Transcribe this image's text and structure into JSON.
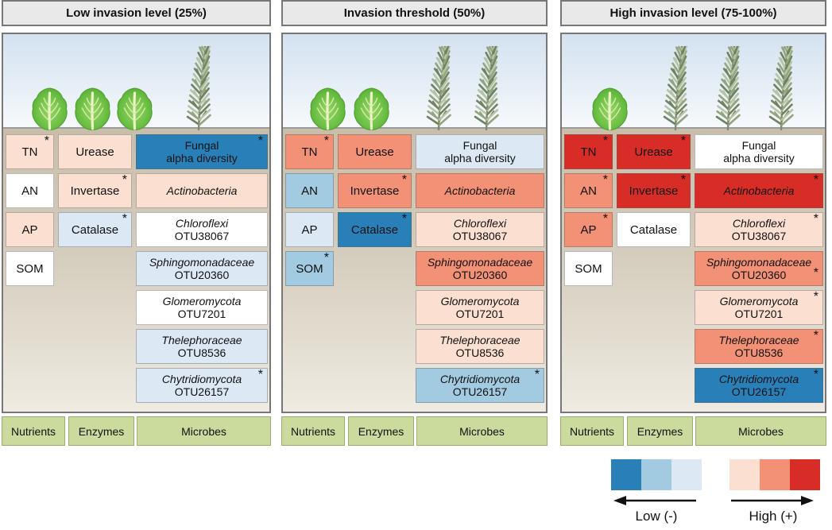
{
  "level_colors": {
    "neg3": "#2980B9",
    "neg2": "#A2CBE2",
    "neg1": "#DCE9F4",
    "pos1": "#FBDFD1",
    "pos2": "#F29175",
    "pos3": "#D82D26",
    "none": "#FFFFFF"
  },
  "category_labels": [
    "Nutrients",
    "Enzymes",
    "Microbes"
  ],
  "panels": [
    {
      "title": "Low invasion level (25%)",
      "scene": {
        "native_count": 3,
        "invasive_count": 1,
        "native_x": [
          35,
          89,
          142
        ],
        "invasive_x": [
          222
        ]
      },
      "nutrients": [
        {
          "label": "TN",
          "level": "pos1",
          "sig": true
        },
        {
          "label": "AN",
          "level": "none",
          "sig": false
        },
        {
          "label": "AP",
          "level": "pos1",
          "sig": false
        },
        {
          "label": "SOM",
          "level": "none",
          "sig": false
        }
      ],
      "enzymes": [
        {
          "label": "Urease",
          "level": "pos1",
          "sig": false
        },
        {
          "label": "Invertase",
          "level": "pos1",
          "sig": true
        },
        {
          "label": "Catalase",
          "level": "neg1",
          "sig": true
        }
      ],
      "microbes": [
        {
          "line1": "Fungal",
          "line2": "alpha diversity",
          "italic": false,
          "level": "neg3",
          "sig": true
        },
        {
          "line1": "Actinobacteria",
          "line2": "",
          "italic": true,
          "level": "pos1",
          "sig": false
        },
        {
          "line1": "Chloroflexi",
          "line2": "OTU38067",
          "italic": true,
          "level": "none",
          "sig": false
        },
        {
          "line1": "Sphingomonadaceae",
          "line2": "OTU20360",
          "italic": true,
          "level": "neg1",
          "sig": false
        },
        {
          "line1": "Glomeromycota",
          "line2": "OTU7201",
          "italic": true,
          "level": "none",
          "sig": false
        },
        {
          "line1": "Thelephoraceae",
          "line2": "OTU8536",
          "italic": true,
          "level": "neg1",
          "sig": false
        },
        {
          "line1": "Chytridiomycota",
          "line2": "OTU26157",
          "italic": true,
          "level": "neg1",
          "sig": true
        }
      ]
    },
    {
      "title": "Invasion threshold (50%)",
      "scene": {
        "native_count": 2,
        "invasive_count": 2,
        "native_x": [
          33,
          88
        ],
        "invasive_x": [
          172,
          232
        ]
      },
      "nutrients": [
        {
          "label": "TN",
          "level": "pos2",
          "sig": true
        },
        {
          "label": "AN",
          "level": "neg2",
          "sig": false
        },
        {
          "label": "AP",
          "level": "neg1",
          "sig": false
        },
        {
          "label": "SOM",
          "level": "neg2",
          "sig": true
        }
      ],
      "enzymes": [
        {
          "label": "Urease",
          "level": "pos2",
          "sig": false
        },
        {
          "label": "Invertase",
          "level": "pos2",
          "sig": true
        },
        {
          "label": "Catalase",
          "level": "neg3",
          "sig": true
        }
      ],
      "microbes": [
        {
          "line1": "Fungal",
          "line2": "alpha diversity",
          "italic": false,
          "level": "neg1",
          "sig": false
        },
        {
          "line1": "Actinobacteria",
          "line2": "",
          "italic": true,
          "level": "pos2",
          "sig": false
        },
        {
          "line1": "Chloroflexi",
          "line2": "OTU38067",
          "italic": true,
          "level": "pos1",
          "sig": false
        },
        {
          "line1": "Sphingomonadaceae",
          "line2": "OTU20360",
          "italic": true,
          "level": "pos2",
          "sig": false
        },
        {
          "line1": "Glomeromycota",
          "line2": "OTU7201",
          "italic": true,
          "level": "pos1",
          "sig": false
        },
        {
          "line1": "Thelephoraceae",
          "line2": "OTU8536",
          "italic": true,
          "level": "pos1",
          "sig": false
        },
        {
          "line1": "Chytridiomycota",
          "line2": "OTU26157",
          "italic": true,
          "level": "neg2",
          "sig": true
        }
      ]
    },
    {
      "title": "High invasion level (75-100%)",
      "scene": {
        "native_count": 1,
        "invasive_count": 3,
        "native_x": [
          37
        ],
        "invasive_x": [
          119,
          185,
          252
        ]
      },
      "nutrients": [
        {
          "label": "TN",
          "level": "pos3",
          "sig": true
        },
        {
          "label": "AN",
          "level": "pos2",
          "sig": true
        },
        {
          "label": "AP",
          "level": "pos2",
          "sig": true
        },
        {
          "label": "SOM",
          "level": "none",
          "sig": false
        }
      ],
      "enzymes": [
        {
          "label": "Urease",
          "level": "pos3",
          "sig": true
        },
        {
          "label": "Invertase",
          "level": "pos3",
          "sig": true
        },
        {
          "label": "Catalase",
          "level": "none",
          "sig": false
        }
      ],
      "microbes": [
        {
          "line1": "Fungal",
          "line2": "alpha diversity",
          "italic": false,
          "level": "none",
          "sig": false
        },
        {
          "line1": "Actinobacteria",
          "line2": "",
          "italic": true,
          "level": "pos3",
          "sig": true
        },
        {
          "line1": "Chloroflexi",
          "line2": "OTU38067",
          "italic": true,
          "level": "pos1",
          "sig": true
        },
        {
          "line1": "Sphingomonadaceae",
          "line2": "OTU20360",
          "italic": true,
          "level": "pos2",
          "sig": true,
          "sig_pos": "mid"
        },
        {
          "line1": "Glomeromycota",
          "line2": "OTU7201",
          "italic": true,
          "level": "pos1",
          "sig": true
        },
        {
          "line1": "Thelephoraceae",
          "line2": "OTU8536",
          "italic": true,
          "level": "pos2",
          "sig": true
        },
        {
          "line1": "Chytridiomycota",
          "line2": "OTU26157",
          "italic": true,
          "level": "neg3",
          "sig": true
        }
      ]
    }
  ],
  "legend": {
    "low_label": "Low (-)",
    "high_label": "High (+)",
    "negative_colors": [
      "#2980B9",
      "#A2CBE2",
      "#DCE9F4"
    ],
    "positive_colors": [
      "#FBDFD1",
      "#F29175",
      "#D82D26"
    ]
  }
}
